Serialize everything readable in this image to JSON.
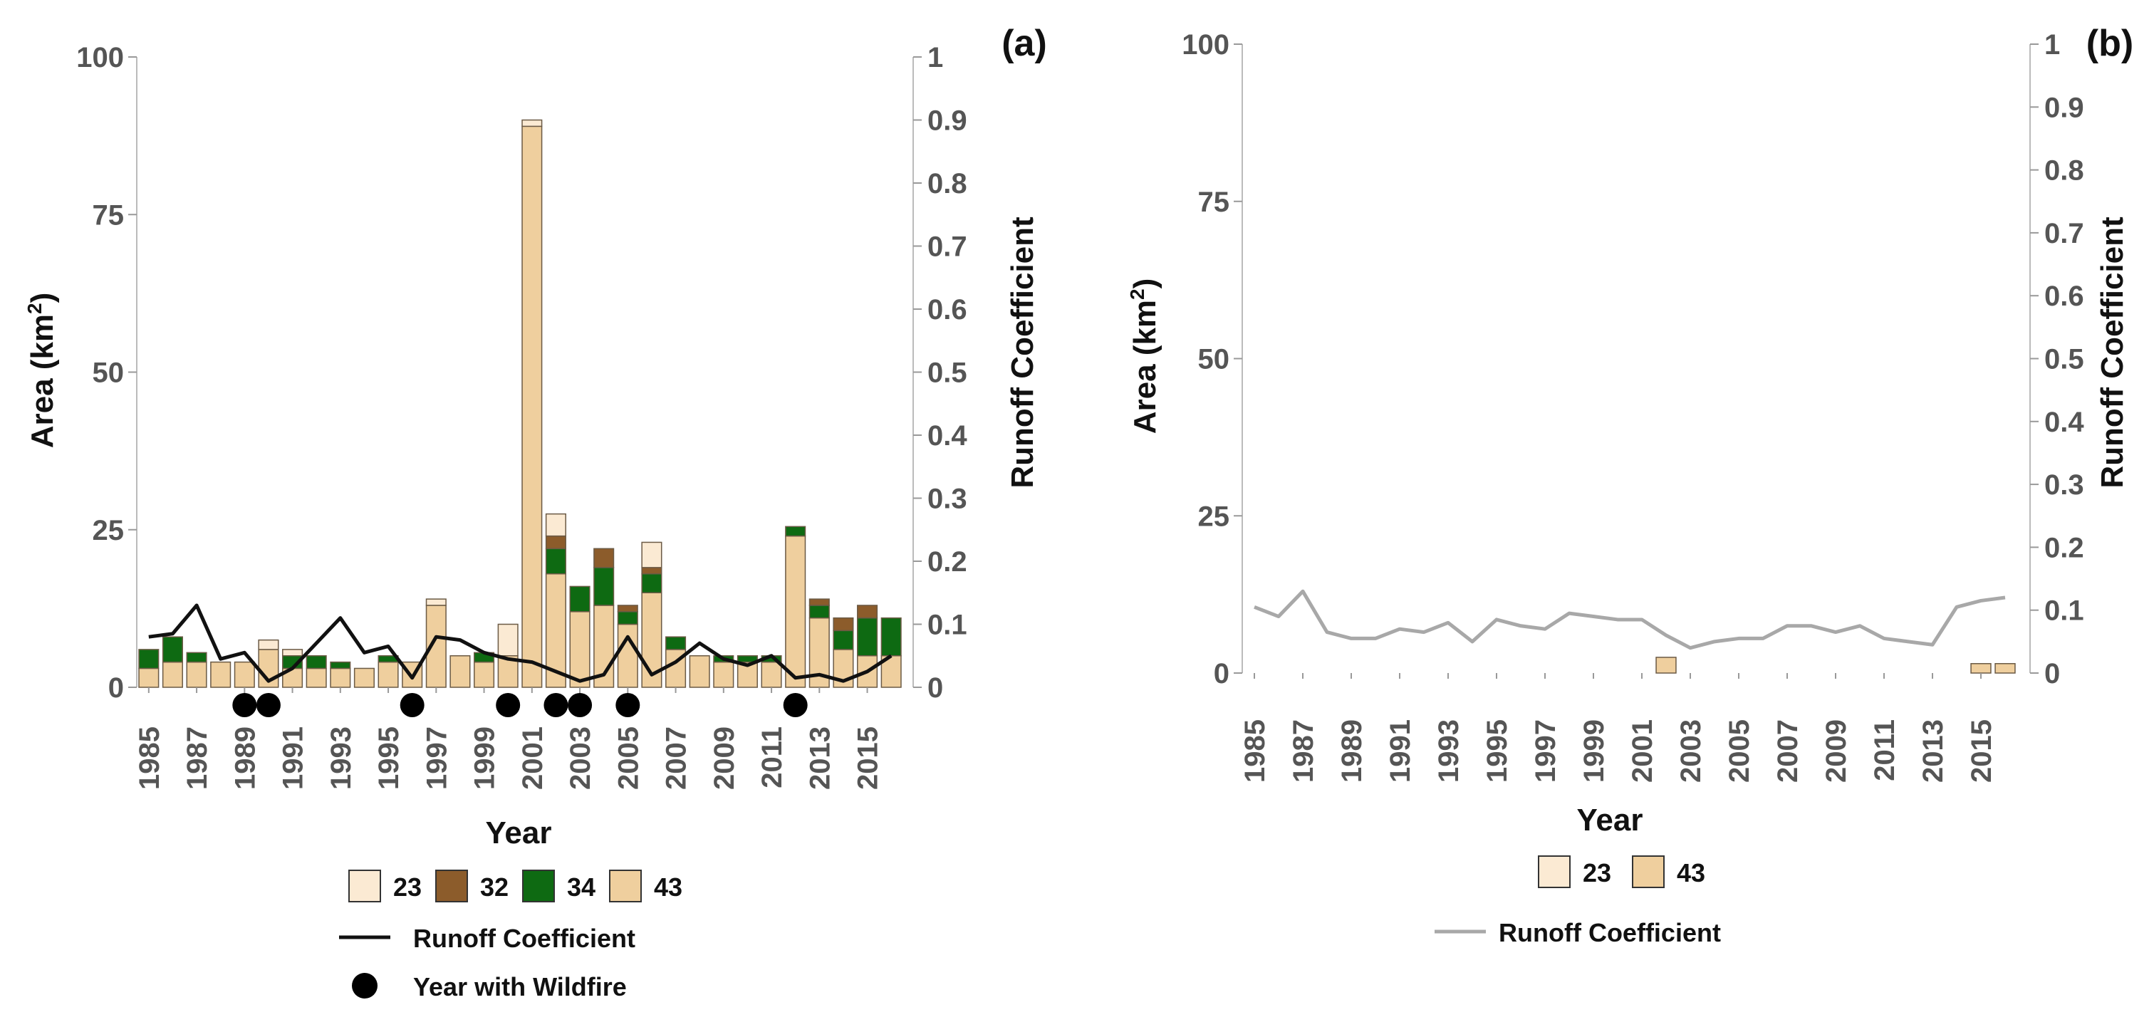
{
  "colors": {
    "c23": "#fbead3",
    "c32": "#8c5c2b",
    "c34": "#0e6a12",
    "c43": "#efcf9e",
    "runoff_a": "#111111",
    "runoff_b": "#a8a8a8",
    "wildfire": "#000000"
  },
  "chart_data": [
    {
      "type": "bar",
      "stacked": true,
      "panel_label": "(a)",
      "title": "",
      "xlabel": "Year",
      "ylabel_left": "Area (km",
      "ylabel_left_sup": "2",
      "ylabel_left_close": ")",
      "ylabel_right": "Runoff Coefficient",
      "ylim_left": [
        0,
        100
      ],
      "ylim_right": [
        0,
        1
      ],
      "left_ticks": [
        "0",
        "25",
        "50",
        "75",
        "100"
      ],
      "right_ticks": [
        "0",
        "0.1",
        "0.2",
        "0.3",
        "0.4",
        "0.5",
        "0.6",
        "0.7",
        "0.8",
        "0.9",
        "1"
      ],
      "categories": [
        1985,
        1986,
        1987,
        1988,
        1989,
        1990,
        1991,
        1992,
        1993,
        1994,
        1995,
        1996,
        1997,
        1998,
        1999,
        2000,
        2001,
        2002,
        2003,
        2004,
        2005,
        2006,
        2007,
        2008,
        2009,
        2010,
        2011,
        2012,
        2013,
        2014,
        2015,
        2016
      ],
      "x_tick_labels": [
        "1985",
        "1987",
        "1989",
        "1991",
        "1993",
        "1995",
        "1997",
        "1999",
        "2001",
        "2003",
        "2005",
        "2007",
        "2009",
        "2011",
        "2013",
        "2015"
      ],
      "series": [
        {
          "name": "43",
          "color_key": "c43",
          "values": [
            3,
            4,
            4,
            4,
            4,
            6,
            3,
            3,
            3,
            3,
            4,
            4,
            13,
            5,
            4,
            5,
            89,
            18,
            12,
            13,
            10,
            15,
            6,
            5,
            4,
            4,
            4,
            24,
            11,
            6,
            5,
            5
          ]
        },
        {
          "name": "34",
          "color_key": "c34",
          "values": [
            3,
            4,
            1.5,
            0,
            0,
            0,
            2,
            2,
            1,
            0,
            1,
            0,
            0,
            0,
            1.5,
            0,
            0,
            4,
            4,
            6,
            2,
            3,
            2,
            0,
            1,
            1,
            1,
            1.5,
            2,
            3,
            6,
            6
          ]
        },
        {
          "name": "32",
          "color_key": "c32",
          "values": [
            0,
            0,
            0,
            0,
            0,
            0,
            0,
            0,
            0,
            0,
            0,
            0,
            0,
            0,
            0,
            0,
            0,
            2,
            0,
            3,
            1,
            1,
            0,
            0,
            0,
            0,
            0,
            0,
            1,
            2,
            2,
            0
          ]
        },
        {
          "name": "23",
          "color_key": "c23",
          "values": [
            0,
            0,
            0,
            0,
            0,
            1.5,
            1,
            0,
            0,
            0,
            0,
            0,
            1,
            0,
            0,
            5,
            1,
            3.5,
            0,
            0,
            0,
            4,
            0,
            0,
            0,
            0,
            0,
            0,
            0,
            0,
            0,
            0
          ]
        }
      ],
      "line": {
        "name": "Runoff Coefficient",
        "color_key": "runoff_a",
        "values": [
          0.08,
          0.085,
          0.13,
          0.045,
          0.055,
          0.01,
          0.03,
          0.07,
          0.11,
          0.055,
          0.065,
          0.015,
          0.08,
          0.075,
          0.055,
          0.045,
          0.04,
          0.025,
          0.01,
          0.02,
          0.08,
          0.02,
          0.04,
          0.07,
          0.045,
          0.035,
          0.05,
          0.015,
          0.02,
          0.01,
          0.025,
          0.05
        ]
      },
      "wildfire_years": [
        1989,
        1990,
        1996,
        2000,
        2002,
        2003,
        2005,
        2012
      ],
      "legend": {
        "swatches": [
          {
            "label": "23",
            "color_key": "c23"
          },
          {
            "label": "32",
            "color_key": "c32"
          },
          {
            "label": "34",
            "color_key": "c34"
          },
          {
            "label": "43",
            "color_key": "c43"
          }
        ],
        "line_label": "Runoff Coefficient",
        "marker_label": "Year with Wildfire"
      }
    },
    {
      "type": "bar",
      "stacked": true,
      "panel_label": "(b)",
      "title": "",
      "xlabel": "Year",
      "ylabel_left": "Area (km",
      "ylabel_left_sup": "2",
      "ylabel_left_close": ")",
      "ylabel_right": "Runoff Coefficient",
      "ylim_left": [
        0,
        100
      ],
      "ylim_right": [
        0,
        1
      ],
      "left_ticks": [
        "0",
        "25",
        "50",
        "75",
        "100"
      ],
      "right_ticks": [
        "0",
        "0.1",
        "0.2",
        "0.3",
        "0.4",
        "0.5",
        "0.6",
        "0.7",
        "0.8",
        "0.9",
        "1"
      ],
      "categories": [
        1985,
        1986,
        1987,
        1988,
        1989,
        1990,
        1991,
        1992,
        1993,
        1994,
        1995,
        1996,
        1997,
        1998,
        1999,
        2000,
        2001,
        2002,
        2003,
        2004,
        2005,
        2006,
        2007,
        2008,
        2009,
        2010,
        2011,
        2012,
        2013,
        2014,
        2015,
        2016
      ],
      "x_tick_labels": [
        "1985",
        "1987",
        "1989",
        "1991",
        "1993",
        "1995",
        "1997",
        "1999",
        "2001",
        "2003",
        "2005",
        "2007",
        "2009",
        "2011",
        "2013",
        "2015"
      ],
      "series": [
        {
          "name": "43",
          "color_key": "c43",
          "values": [
            0,
            0,
            0,
            0,
            0,
            0,
            0,
            0,
            0,
            0,
            0,
            0,
            0,
            0,
            0,
            0,
            0,
            2.5,
            0,
            0,
            0,
            0,
            0,
            0,
            0,
            0,
            0,
            0,
            0,
            0,
            1.5,
            1.5
          ]
        },
        {
          "name": "23",
          "color_key": "c23",
          "values": [
            0,
            0,
            0,
            0,
            0,
            0,
            0,
            0,
            0,
            0,
            0,
            0,
            0,
            0,
            0,
            0,
            0,
            0,
            0,
            0,
            0,
            0,
            0,
            0,
            0,
            0,
            0,
            0,
            0,
            0,
            0,
            0
          ]
        }
      ],
      "line": {
        "name": "Runoff Coefficient",
        "color_key": "runoff_b",
        "values": [
          0.105,
          0.09,
          0.13,
          0.065,
          0.055,
          0.055,
          0.07,
          0.065,
          0.08,
          0.05,
          0.085,
          0.075,
          0.07,
          0.095,
          0.09,
          0.085,
          0.085,
          0.06,
          0.04,
          0.05,
          0.055,
          0.055,
          0.075,
          0.075,
          0.065,
          0.075,
          0.055,
          0.05,
          0.045,
          0.105,
          0.115,
          0.12
        ]
      },
      "wildfire_years": [],
      "legend": {
        "swatches": [
          {
            "label": "23",
            "color_key": "c23"
          },
          {
            "label": "43",
            "color_key": "c43"
          }
        ],
        "line_label": "Runoff Coefficient",
        "marker_label": ""
      }
    }
  ]
}
